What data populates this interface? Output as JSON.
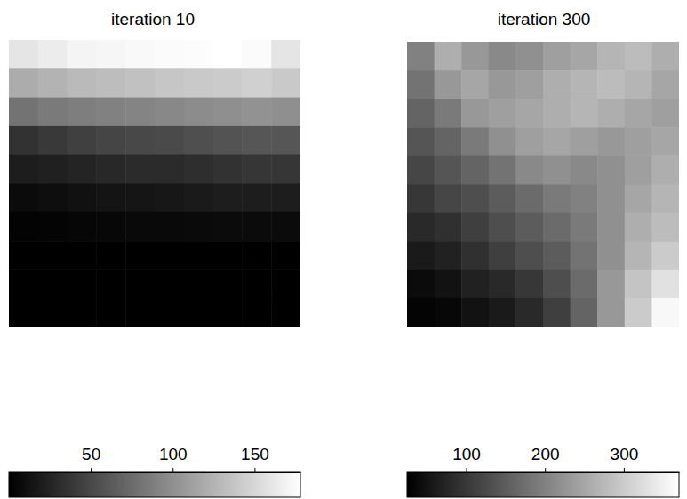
{
  "chart_data": [
    {
      "type": "heatmap",
      "title": "iteration 10",
      "cells": [
        [
          160,
          165,
          170,
          172,
          174,
          175,
          176,
          178,
          175,
          160
        ],
        [
          120,
          125,
          130,
          132,
          135,
          138,
          140,
          142,
          145,
          140
        ],
        [
          80,
          85,
          88,
          90,
          92,
          95,
          98,
          100,
          102,
          100
        ],
        [
          35,
          40,
          45,
          48,
          50,
          52,
          55,
          58,
          60,
          60
        ],
        [
          20,
          22,
          25,
          28,
          30,
          30,
          32,
          35,
          38,
          38
        ],
        [
          8,
          10,
          12,
          14,
          15,
          16,
          18,
          20,
          20,
          20
        ],
        [
          2,
          3,
          4,
          5,
          6,
          6,
          7,
          8,
          8,
          8
        ],
        [
          0,
          0,
          0,
          0,
          0,
          0,
          0,
          0,
          0,
          0
        ],
        [
          0,
          0,
          0,
          0,
          0,
          0,
          0,
          0,
          0,
          0
        ],
        [
          0,
          0,
          0,
          0,
          0,
          0,
          0,
          0,
          0,
          0
        ]
      ],
      "colorbar_lim": [
        0,
        178
      ],
      "colorbar_ticks": [
        50,
        100,
        150
      ]
    },
    {
      "type": "heatmap",
      "title": "iteration 300",
      "cells": [
        [
          200,
          260,
          230,
          210,
          220,
          240,
          250,
          270,
          280,
          260
        ],
        [
          180,
          230,
          250,
          230,
          240,
          260,
          270,
          280,
          270,
          250
        ],
        [
          160,
          190,
          230,
          240,
          250,
          260,
          270,
          260,
          250,
          240
        ],
        [
          140,
          160,
          190,
          220,
          240,
          250,
          240,
          230,
          240,
          250
        ],
        [
          120,
          140,
          160,
          180,
          210,
          220,
          210,
          220,
          240,
          260
        ],
        [
          100,
          120,
          130,
          150,
          170,
          190,
          200,
          220,
          250,
          270
        ],
        [
          80,
          90,
          110,
          130,
          150,
          170,
          190,
          220,
          260,
          280
        ],
        [
          60,
          70,
          90,
          110,
          130,
          150,
          180,
          220,
          270,
          300
        ],
        [
          40,
          50,
          70,
          80,
          100,
          130,
          170,
          230,
          290,
          330
        ],
        [
          30,
          35,
          50,
          60,
          80,
          110,
          160,
          230,
          300,
          360
        ]
      ],
      "colorbar_lim": [
        25,
        370
      ],
      "colorbar_ticks": [
        100,
        200,
        300
      ]
    }
  ]
}
